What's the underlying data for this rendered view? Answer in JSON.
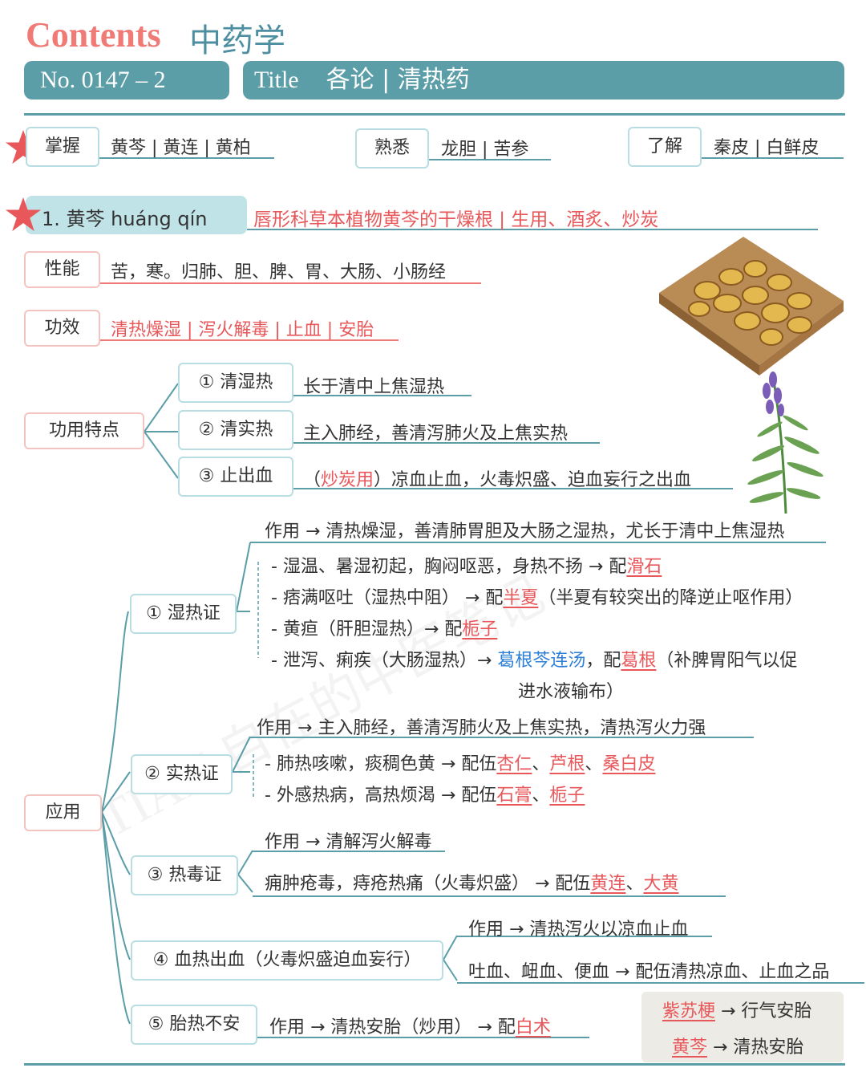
{
  "header": {
    "contents_label": "Contents",
    "subject": "中药学",
    "number": "No. 0147 – 2",
    "title_label": "Title",
    "title_text": "各论 | 清热药"
  },
  "levels": {
    "master_label": "掌握",
    "master_items": "黄芩 | 黄连 | 黄柏",
    "familiar_label": "熟悉",
    "familiar_items": "龙胆 | 苦参",
    "know_label": "了解",
    "know_items": "秦皮 | 白鲜皮"
  },
  "herb": {
    "heading": "1.  黄芩 huáng qín",
    "source": "唇形科草本植物黄芩的干燥根 | 生用、酒炙、炒炭",
    "properties_label": "性能",
    "properties": "苦，寒。归肺、胆、脾、胃、大肠、小肠经",
    "effects_label": "功效",
    "effects": "清热燥湿 | 泻火解毒 | 止血 | 安胎"
  },
  "features": {
    "label": "功用特点",
    "items": [
      {
        "name": "① 清湿热",
        "desc": "长于清中上焦湿热"
      },
      {
        "name": "② 清实热",
        "desc": "主入肺经，善清泻肺火及上焦实热"
      },
      {
        "name": "③ 止出血",
        "desc_pre": "（",
        "desc_red": "炒炭用",
        "desc_post": "）凉血止血，火毒炽盛、迫血妄行之出血"
      }
    ]
  },
  "application": {
    "label": "应用",
    "s1": {
      "name": "① 湿热证",
      "effect": "作用 → 清热燥湿，善清肺胃胆及大肠之湿热，尤长于清中上焦湿热",
      "r1_pre": "- 湿温、暑湿初起，胸闷呕恶，身热不扬 → 配",
      "r1_red": "滑石",
      "r2_pre": "- 痞满呕吐（湿热中阻） → 配",
      "r2_red": "半夏",
      "r2_post": "（半夏有较突出的降逆止呕作用）",
      "r3_pre": "- 黄疸（肝胆湿热）→ 配",
      "r3_red": "栀子",
      "r4_pre": "- 泄泻、痢疾（大肠湿热）→ ",
      "r4_blue": "葛根芩连汤",
      "r4_mid": "，配",
      "r4_red": "葛根",
      "r4_post": "（补脾胃阳气以促",
      "r4_cont": "进水液输布）"
    },
    "s2": {
      "name": "② 实热证",
      "effect": "作用 → 主入肺经，善清泻肺火及上焦实热，清热泻火力强",
      "r1_pre": "- 肺热咳嗽，痰稠色黄 → 配伍",
      "r1_a": "杏仁",
      "r1_b": "芦根",
      "r1_c": "桑白皮",
      "sep": "、",
      "r2_pre": "- 外感热病，高热烦渴 → 配伍",
      "r2_a": "石膏",
      "r2_b": "栀子"
    },
    "s3": {
      "name": "③ 热毒证",
      "effect": "作用 → 清解泻火解毒",
      "r1_pre": "痈肿疮毒，痔疮热痛（火毒炽盛） → 配伍",
      "r1_a": "黄连",
      "r1_b": "大黄",
      "sep": "、"
    },
    "s4": {
      "name": "④ 血热出血（火毒炽盛迫血妄行）",
      "effect": "作用 → 清热泻火以凉血止血",
      "r1": "吐血、衄血、便血 → 配伍清热凉血、止血之品"
    },
    "s5": {
      "name": "⑤ 胎热不安",
      "r1_pre": "作用 → 清热安胎（炒用） → 配",
      "r1_red": "白术"
    },
    "note": {
      "l1_red": "紫苏梗",
      "l1_post": " → 行气安胎",
      "l2_red": "黄芩",
      "l2_post": " → 清热安胎"
    }
  },
  "colors": {
    "teal": "#5b9ea8",
    "coral": "#ef7a76",
    "red": "#e8575a",
    "blue": "#2d7fd6"
  },
  "watermark": "TIAN 自在的中医笔记"
}
